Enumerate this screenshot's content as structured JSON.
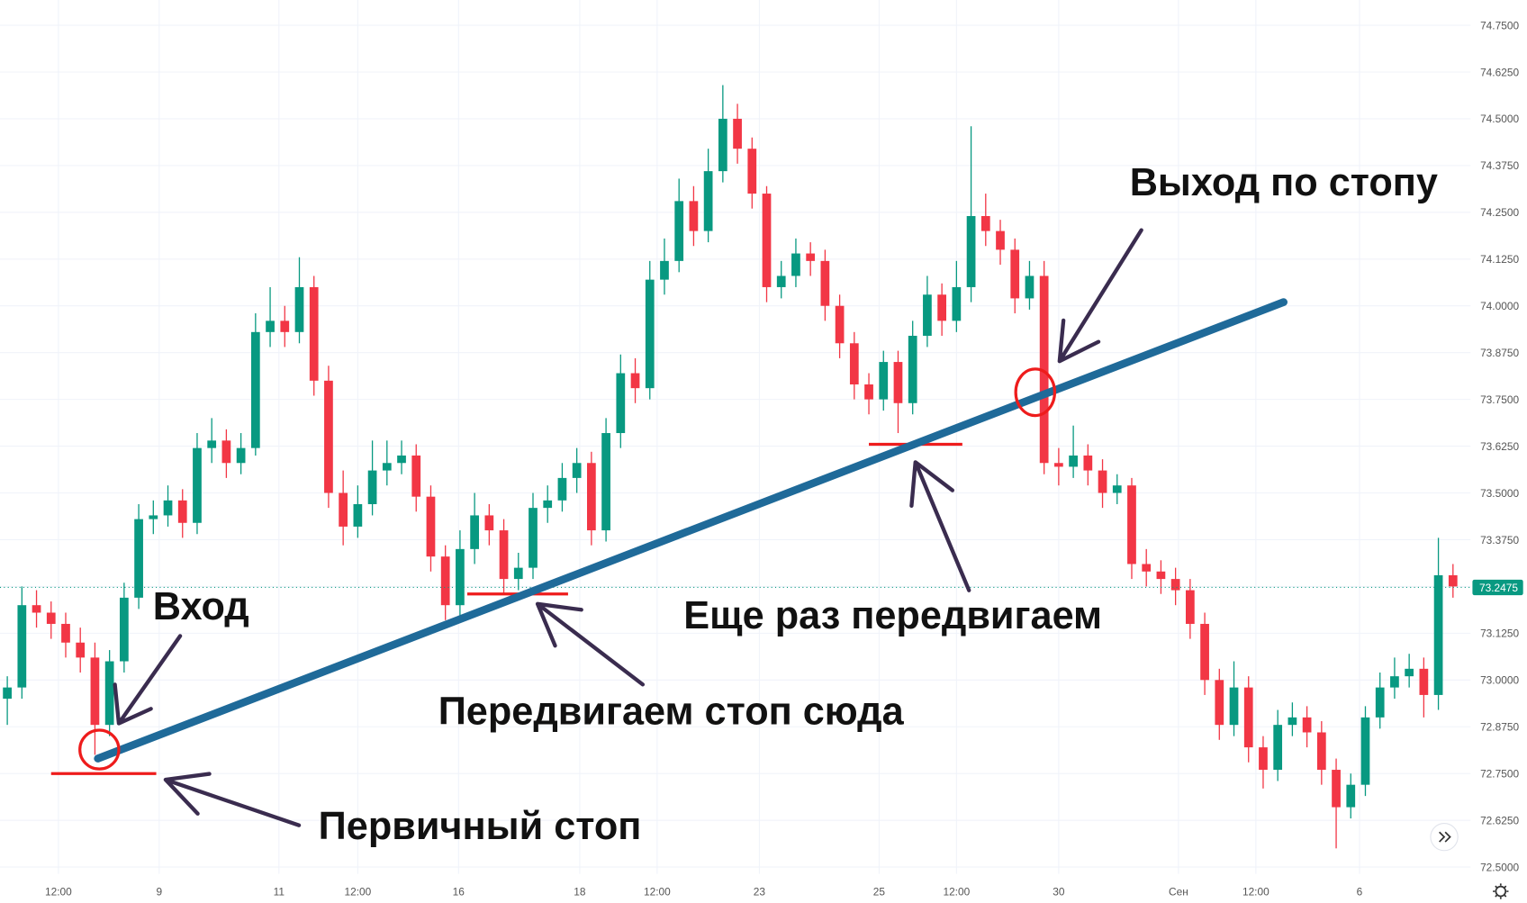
{
  "chart_data": {
    "type": "candlestick",
    "up_color": "#089981",
    "down_color": "#f23645",
    "grid": true,
    "ylim": [
      72.5,
      74.75
    ],
    "xlim": [
      -0.5,
      100.2
    ],
    "yticks": [
      {
        "value": 72.5,
        "label": "72.5000"
      },
      {
        "value": 72.625,
        "label": "72.6250"
      },
      {
        "value": 72.75,
        "label": "72.7500"
      },
      {
        "value": 72.875,
        "label": "72.8750"
      },
      {
        "value": 73.0,
        "label": "73.0000"
      },
      {
        "value": 73.125,
        "label": "73.1250"
      },
      {
        "value": 73.25,
        "label": "73.2500"
      },
      {
        "value": 73.375,
        "label": "73.3750"
      },
      {
        "value": 73.5,
        "label": "73.5000"
      },
      {
        "value": 73.625,
        "label": "73.6250"
      },
      {
        "value": 73.75,
        "label": "73.7500"
      },
      {
        "value": 73.875,
        "label": "73.8750"
      },
      {
        "value": 74.0,
        "label": "74.0000"
      },
      {
        "value": 74.125,
        "label": "74.1250"
      },
      {
        "value": 74.25,
        "label": "74.2500"
      },
      {
        "value": 74.375,
        "label": "74.3750"
      },
      {
        "value": 74.5,
        "label": "74.5000"
      },
      {
        "value": 74.625,
        "label": "74.6250"
      },
      {
        "value": 74.75,
        "label": "74.7500"
      }
    ],
    "xticks": [
      {
        "value": 3.5,
        "label": "12:00"
      },
      {
        "value": 10.4,
        "label": "9"
      },
      {
        "value": 18.6,
        "label": "11"
      },
      {
        "value": 24,
        "label": "12:00"
      },
      {
        "value": 30.9,
        "label": "16"
      },
      {
        "value": 39.2,
        "label": "18"
      },
      {
        "value": 44.5,
        "label": "12:00"
      },
      {
        "value": 51.5,
        "label": "23"
      },
      {
        "value": 59.7,
        "label": "25"
      },
      {
        "value": 65,
        "label": "12:00"
      },
      {
        "value": 72,
        "label": "30"
      },
      {
        "value": 80.2,
        "label": "Сен"
      },
      {
        "value": 85.5,
        "label": "12:00"
      },
      {
        "value": 92.6,
        "label": "6"
      }
    ],
    "open": [
      72.95,
      72.98,
      73.2,
      73.18,
      73.15,
      73.1,
      73.06,
      72.88,
      73.05,
      73.22,
      73.43,
      73.44,
      73.48,
      73.42,
      73.62,
      73.64,
      73.58,
      73.62,
      73.93,
      73.96,
      73.93,
      74.05,
      73.8,
      73.5,
      73.41,
      73.47,
      73.56,
      73.58,
      73.6,
      73.49,
      73.33,
      73.2,
      73.35,
      73.44,
      73.4,
      73.27,
      73.3,
      73.46,
      73.48,
      73.54,
      73.58,
      73.4,
      73.66,
      73.82,
      73.78,
      74.07,
      74.12,
      74.28,
      74.2,
      74.36,
      74.5,
      74.42,
      74.3,
      74.05,
      74.08,
      74.14,
      74.12,
      74.0,
      73.9,
      73.79,
      73.75,
      73.85,
      73.74,
      73.92,
      74.03,
      73.96,
      74.05,
      74.24,
      74.2,
      74.15,
      74.02,
      74.08,
      73.58,
      73.57,
      73.6,
      73.56,
      73.5,
      73.52,
      73.31,
      73.29,
      73.27,
      73.24,
      73.15,
      73.0,
      72.88,
      72.98,
      72.82,
      72.76,
      72.88,
      72.9,
      72.86,
      72.76,
      72.66,
      72.72,
      72.9,
      72.98,
      73.01,
      73.03,
      72.96,
      73.28
    ],
    "high": [
      73.01,
      73.25,
      73.24,
      73.21,
      73.18,
      73.14,
      73.1,
      73.08,
      73.26,
      73.47,
      73.48,
      73.52,
      73.51,
      73.66,
      73.7,
      73.67,
      73.66,
      73.98,
      74.05,
      74.0,
      74.13,
      74.08,
      73.84,
      73.56,
      73.52,
      73.64,
      73.64,
      73.64,
      73.63,
      73.52,
      73.36,
      73.4,
      73.5,
      73.47,
      73.43,
      73.34,
      73.5,
      73.52,
      73.58,
      73.62,
      73.61,
      73.7,
      73.87,
      73.86,
      74.12,
      74.18,
      74.34,
      74.32,
      74.42,
      74.59,
      74.54,
      74.45,
      74.32,
      74.12,
      74.18,
      74.17,
      74.15,
      74.03,
      73.93,
      73.82,
      73.88,
      73.88,
      73.96,
      74.08,
      74.06,
      74.12,
      74.48,
      74.3,
      74.23,
      74.18,
      74.12,
      74.12,
      73.62,
      73.68,
      73.63,
      73.59,
      73.55,
      73.54,
      73.35,
      73.32,
      73.3,
      73.27,
      73.18,
      73.03,
      73.05,
      73.01,
      72.85,
      72.92,
      72.94,
      72.93,
      72.89,
      72.79,
      72.75,
      72.93,
      73.02,
      73.06,
      73.07,
      73.06,
      73.38,
      73.31
    ],
    "low": [
      72.88,
      72.95,
      73.14,
      73.11,
      73.06,
      73.02,
      72.8,
      72.85,
      73.02,
      73.19,
      73.39,
      73.41,
      73.38,
      73.39,
      73.58,
      73.54,
      73.55,
      73.6,
      73.89,
      73.89,
      73.9,
      73.76,
      73.46,
      73.36,
      73.38,
      73.44,
      73.52,
      73.55,
      73.45,
      73.29,
      73.16,
      73.17,
      73.31,
      73.36,
      73.23,
      73.24,
      73.27,
      73.42,
      73.45,
      73.5,
      73.36,
      73.37,
      73.62,
      73.74,
      73.75,
      74.03,
      74.09,
      74.16,
      74.17,
      74.33,
      74.38,
      74.26,
      74.01,
      74.02,
      74.05,
      74.08,
      73.96,
      73.86,
      73.75,
      73.71,
      73.72,
      73.66,
      73.71,
      73.89,
      73.92,
      73.93,
      74.01,
      74.16,
      74.11,
      73.98,
      73.99,
      73.55,
      73.52,
      73.54,
      73.52,
      73.46,
      73.47,
      73.27,
      73.25,
      73.23,
      73.2,
      73.11,
      72.96,
      72.84,
      72.85,
      72.78,
      72.71,
      72.73,
      72.85,
      72.82,
      72.72,
      72.55,
      72.63,
      72.69,
      72.87,
      72.95,
      72.98,
      72.9,
      72.92,
      73.22
    ],
    "close": [
      72.98,
      73.2,
      73.18,
      73.15,
      73.1,
      73.06,
      72.88,
      73.05,
      73.22,
      73.43,
      73.44,
      73.48,
      73.42,
      73.62,
      73.64,
      73.58,
      73.62,
      73.93,
      73.96,
      73.93,
      74.05,
      73.8,
      73.5,
      73.41,
      73.47,
      73.56,
      73.58,
      73.6,
      73.49,
      73.33,
      73.2,
      73.35,
      73.44,
      73.4,
      73.27,
      73.3,
      73.46,
      73.48,
      73.54,
      73.58,
      73.4,
      73.66,
      73.82,
      73.78,
      74.07,
      74.12,
      74.28,
      74.2,
      74.36,
      74.5,
      74.42,
      74.3,
      74.05,
      74.08,
      74.14,
      74.12,
      74.0,
      73.9,
      73.79,
      73.75,
      73.85,
      73.74,
      73.92,
      74.03,
      73.96,
      74.05,
      74.24,
      74.2,
      74.15,
      74.02,
      74.08,
      73.58,
      73.57,
      73.6,
      73.56,
      73.5,
      73.52,
      73.31,
      73.29,
      73.27,
      73.24,
      73.15,
      73.0,
      72.88,
      72.98,
      72.82,
      72.76,
      72.88,
      72.9,
      72.86,
      72.76,
      72.66,
      72.72,
      72.9,
      72.98,
      73.01,
      73.03,
      72.96,
      73.28,
      73.25
    ],
    "last_price": 73.2475,
    "last_price_color": "#089981",
    "trendline": {
      "x": [
        6.2,
        87.4
      ],
      "values": [
        72.79,
        74.01
      ],
      "color": "#1f6a99"
    },
    "stops": [
      {
        "x": [
          3.0,
          10.2
        ],
        "value": 72.75
      },
      {
        "x": [
          31.5,
          38.4
        ],
        "value": 73.23
      },
      {
        "x": [
          59.0,
          65.4
        ],
        "value": 73.63
      }
    ],
    "stop_color": "#ee1c1c",
    "annotations": [
      "Вход",
      "Первичный стоп",
      "Передвигаем стоп сюда",
      "Еще раз передвигаем",
      "Выход по стопу"
    ]
  }
}
